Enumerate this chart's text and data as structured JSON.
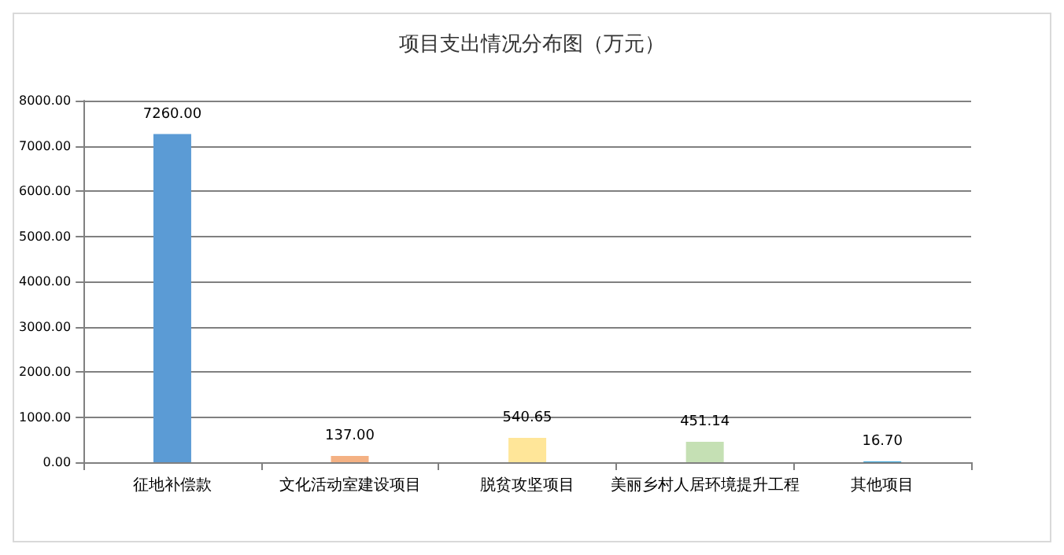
{
  "chart_data": {
    "type": "bar",
    "title": "项目支出情况分布图（万元）",
    "categories": [
      "征地补偿款",
      "文化活动室建设项目",
      "脱贫攻坚项目",
      "美丽乡村人居环境提升工程",
      "其他项目"
    ],
    "values": [
      7260,
      137,
      540.65,
      451.14,
      16.7
    ],
    "value_labels": [
      "7260.00",
      "137.00",
      "540.65",
      "451.14",
      "16.70"
    ],
    "colors": [
      "#5b9bd5",
      "#f4b183",
      "#ffe699",
      "#c5e0b4",
      "#2e9fd8"
    ],
    "ylim": [
      0,
      8000
    ],
    "yticks": [
      {
        "value": 0,
        "label": "0.00"
      },
      {
        "value": 1000,
        "label": "1000.00"
      },
      {
        "value": 2000,
        "label": "2000.00"
      },
      {
        "value": 3000,
        "label": "3000.00"
      },
      {
        "value": 4000,
        "label": "4000.00"
      },
      {
        "value": 5000,
        "label": "5000.00"
      },
      {
        "value": 6000,
        "label": "6000.00"
      },
      {
        "value": 7000,
        "label": "7000.00"
      },
      {
        "value": 8000,
        "label": "8000.00"
      }
    ],
    "grid": "y"
  }
}
